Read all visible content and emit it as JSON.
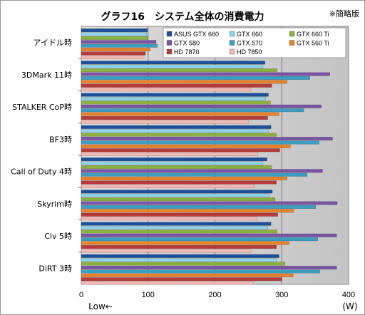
{
  "chart_data": {
    "type": "bar",
    "orientation": "horizontal",
    "title": "グラフ16　システム全体の消費電力",
    "note": "※簡略版",
    "xlabel_left": "Low←",
    "xlabel_right": "(W)",
    "xlim": [
      0,
      400
    ],
    "xticks": [
      0,
      100,
      200,
      300,
      400
    ],
    "grid": true,
    "legend_position": "top-right",
    "categories": [
      "アイドル時",
      "3DMark 11時",
      "STALKER  CoP時",
      "BF3時",
      "Call of Duty 4時",
      "Skyrim時",
      "Civ 5時",
      "DiRT 3時"
    ],
    "series": [
      {
        "name": "ASUS GTX 660",
        "color": "#1f4e9a",
        "values": [
          99,
          275,
          280,
          284,
          278,
          286,
          284,
          296
        ]
      },
      {
        "name": "GTX 660",
        "color": "#8ed2e8",
        "values": [
          98,
          272,
          276,
          280,
          272,
          281,
          279,
          292
        ]
      },
      {
        "name": "GTX 660 Ti",
        "color": "#8ab040",
        "values": [
          100,
          293,
          283,
          292,
          285,
          290,
          293,
          305
        ]
      },
      {
        "name": "GTX 580",
        "color": "#7a55a5",
        "values": [
          112,
          372,
          359,
          376,
          361,
          383,
          382,
          382
        ]
      },
      {
        "name": "GTX 570",
        "color": "#3d9ec0",
        "values": [
          114,
          342,
          333,
          356,
          338,
          351,
          354,
          357
        ]
      },
      {
        "name": "GTX 560 Ti",
        "color": "#e8822a",
        "values": [
          103,
          308,
          296,
          313,
          308,
          318,
          311,
          317
        ]
      },
      {
        "name": "HD 7870",
        "color": "#b83a3a",
        "values": [
          96,
          285,
          279,
          297,
          292,
          294,
          292,
          300
        ]
      },
      {
        "name": "HD 7850",
        "color": "#f2b8b2",
        "values": [
          94,
          255,
          250,
          264,
          260,
          263,
          254,
          258
        ]
      }
    ]
  }
}
